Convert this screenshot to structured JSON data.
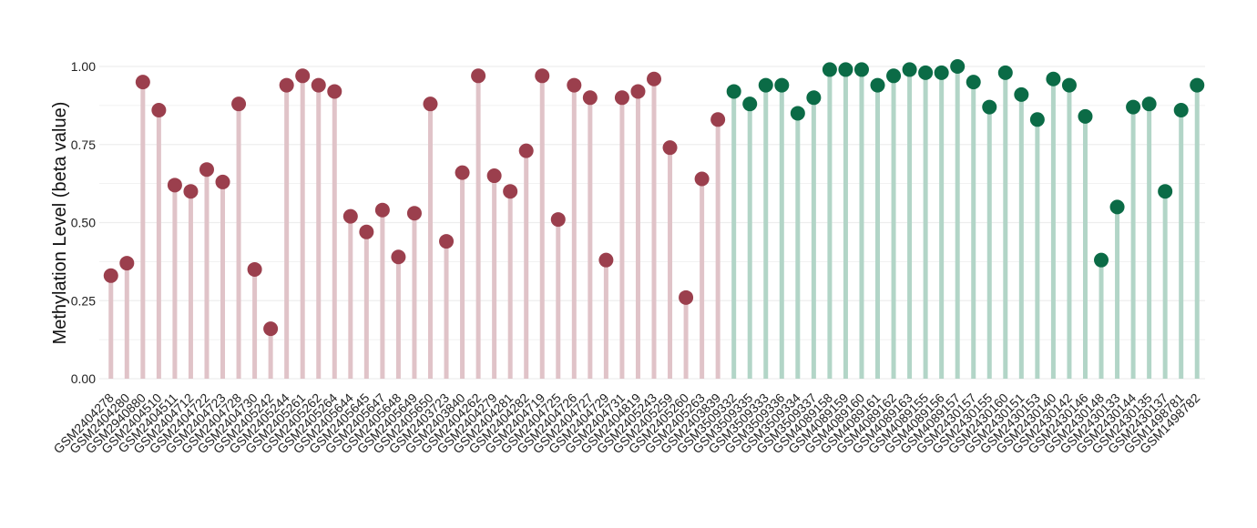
{
  "chart_data": {
    "type": "lollipop",
    "ylabel": "Methylation Level (beta value)",
    "ylim": [
      0,
      1.0
    ],
    "yticks": [
      "0.00",
      "0.25",
      "0.50",
      "0.75",
      "1.00"
    ],
    "grid": true,
    "colors": {
      "group1_point": "#9b3f4d",
      "group1_stem": "#e0c3c8",
      "group2_point": "#0b6b46",
      "group2_stem": "#b2d5c7",
      "grid": "#eeeeee"
    },
    "categories": [
      "GSM2404278",
      "GSM2404280",
      "GSM2940880",
      "GSM2404510",
      "GSM2404511",
      "GSM2404712",
      "GSM2404722",
      "GSM2404723",
      "GSM2404728",
      "GSM2404730",
      "GSM2405242",
      "GSM2405244",
      "GSM2405261",
      "GSM2405262",
      "GSM2405264",
      "GSM2405644",
      "GSM2405645",
      "GSM2405647",
      "GSM2405648",
      "GSM2405649",
      "GSM2405650",
      "GSM2403723",
      "GSM2403840",
      "GSM2404262",
      "GSM2404279",
      "GSM2404281",
      "GSM2404282",
      "GSM2404719",
      "GSM2404725",
      "GSM2404726",
      "GSM2404727",
      "GSM2404729",
      "GSM2404731",
      "GSM2404819",
      "GSM2405243",
      "GSM2405259",
      "GSM2405260",
      "GSM2405263",
      "GSM2403839",
      "GSM3509332",
      "GSM3509335",
      "GSM3509333",
      "GSM3509336",
      "GSM3509334",
      "GSM3509337",
      "GSM4089158",
      "GSM4089159",
      "GSM4089160",
      "GSM4089161",
      "GSM4089162",
      "GSM4089163",
      "GSM4089155",
      "GSM4089156",
      "GSM4089157",
      "GSM2430157",
      "GSM2430155",
      "GSM2430160",
      "GSM2430151",
      "GSM2430153",
      "GSM2430140",
      "GSM2430142",
      "GSM2430146",
      "GSM2430148",
      "GSM2430133",
      "GSM2430144",
      "GSM2430135",
      "GSM2430137",
      "GSM1498781",
      "GSM1498782"
    ],
    "groups": [
      1,
      1,
      1,
      1,
      1,
      1,
      1,
      1,
      1,
      1,
      1,
      1,
      1,
      1,
      1,
      1,
      1,
      1,
      1,
      1,
      1,
      1,
      1,
      1,
      1,
      1,
      1,
      1,
      1,
      1,
      1,
      1,
      1,
      1,
      1,
      1,
      1,
      1,
      1,
      2,
      2,
      2,
      2,
      2,
      2,
      2,
      2,
      2,
      2,
      2,
      2,
      2,
      2,
      2,
      2,
      2,
      2,
      2,
      2,
      2,
      2,
      2,
      2,
      2,
      2,
      2,
      2,
      2,
      2
    ],
    "values": [
      0.33,
      0.37,
      0.95,
      0.86,
      0.62,
      0.6,
      0.67,
      0.63,
      0.88,
      0.35,
      0.16,
      0.94,
      0.97,
      0.94,
      0.92,
      0.52,
      0.47,
      0.54,
      0.39,
      0.53,
      0.88,
      0.44,
      0.66,
      0.97,
      0.65,
      0.6,
      0.73,
      0.97,
      0.51,
      0.94,
      0.9,
      0.38,
      0.9,
      0.92,
      0.96,
      0.74,
      0.26,
      0.64,
      0.83,
      0.92,
      0.88,
      0.94,
      0.94,
      0.85,
      0.9,
      0.99,
      0.99,
      0.99,
      0.94,
      0.97,
      0.99,
      0.98,
      0.98,
      1.0,
      0.95,
      0.87,
      0.98,
      0.91,
      0.83,
      0.96,
      0.94,
      0.84,
      0.38,
      0.55,
      0.87,
      0.88,
      0.6,
      0.86,
      0.94
    ]
  }
}
